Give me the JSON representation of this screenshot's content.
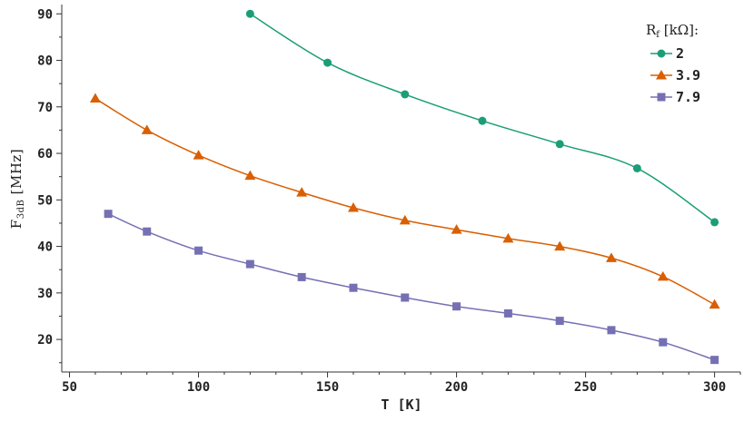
{
  "chart_data": {
    "type": "line",
    "xlabel": "T [K]",
    "ylabel": {
      "main": "F",
      "sub": "3dB",
      "unit": " [MHz]"
    },
    "xlim": [
      47,
      310
    ],
    "ylim": [
      13,
      92
    ],
    "xticks": [
      50,
      100,
      150,
      200,
      250,
      300
    ],
    "yticks": [
      20,
      30,
      40,
      50,
      60,
      70,
      80,
      90
    ],
    "grid": false,
    "legend": {
      "title_main": "R",
      "title_sub": "f",
      "title_unit": " [kΩ]:",
      "placement": "top-right"
    },
    "series": [
      {
        "name": "2",
        "color": "#1b9e77",
        "marker": "circle",
        "x": [
          120,
          150,
          180,
          210,
          240,
          270,
          300
        ],
        "y": [
          90,
          79.5,
          72.7,
          67,
          62,
          56.8,
          45.2
        ]
      },
      {
        "name": "3.9",
        "color": "#d95f02",
        "marker": "triangle",
        "x": [
          60,
          80,
          100,
          120,
          140,
          160,
          180,
          200,
          220,
          240,
          260,
          280,
          300
        ],
        "y": [
          71.8,
          65,
          59.6,
          55.2,
          51.6,
          48.3,
          45.6,
          43.6,
          41.7,
          40,
          37.5,
          33.5,
          27.5
        ]
      },
      {
        "name": "7.9",
        "color": "#7570b3",
        "marker": "square",
        "x": [
          65,
          80,
          100,
          120,
          140,
          160,
          180,
          200,
          220,
          240,
          260,
          280,
          300
        ],
        "y": [
          47,
          43.2,
          39.1,
          36.2,
          33.4,
          31.1,
          29,
          27.1,
          25.6,
          24,
          22,
          19.4,
          15.6
        ]
      }
    ]
  }
}
